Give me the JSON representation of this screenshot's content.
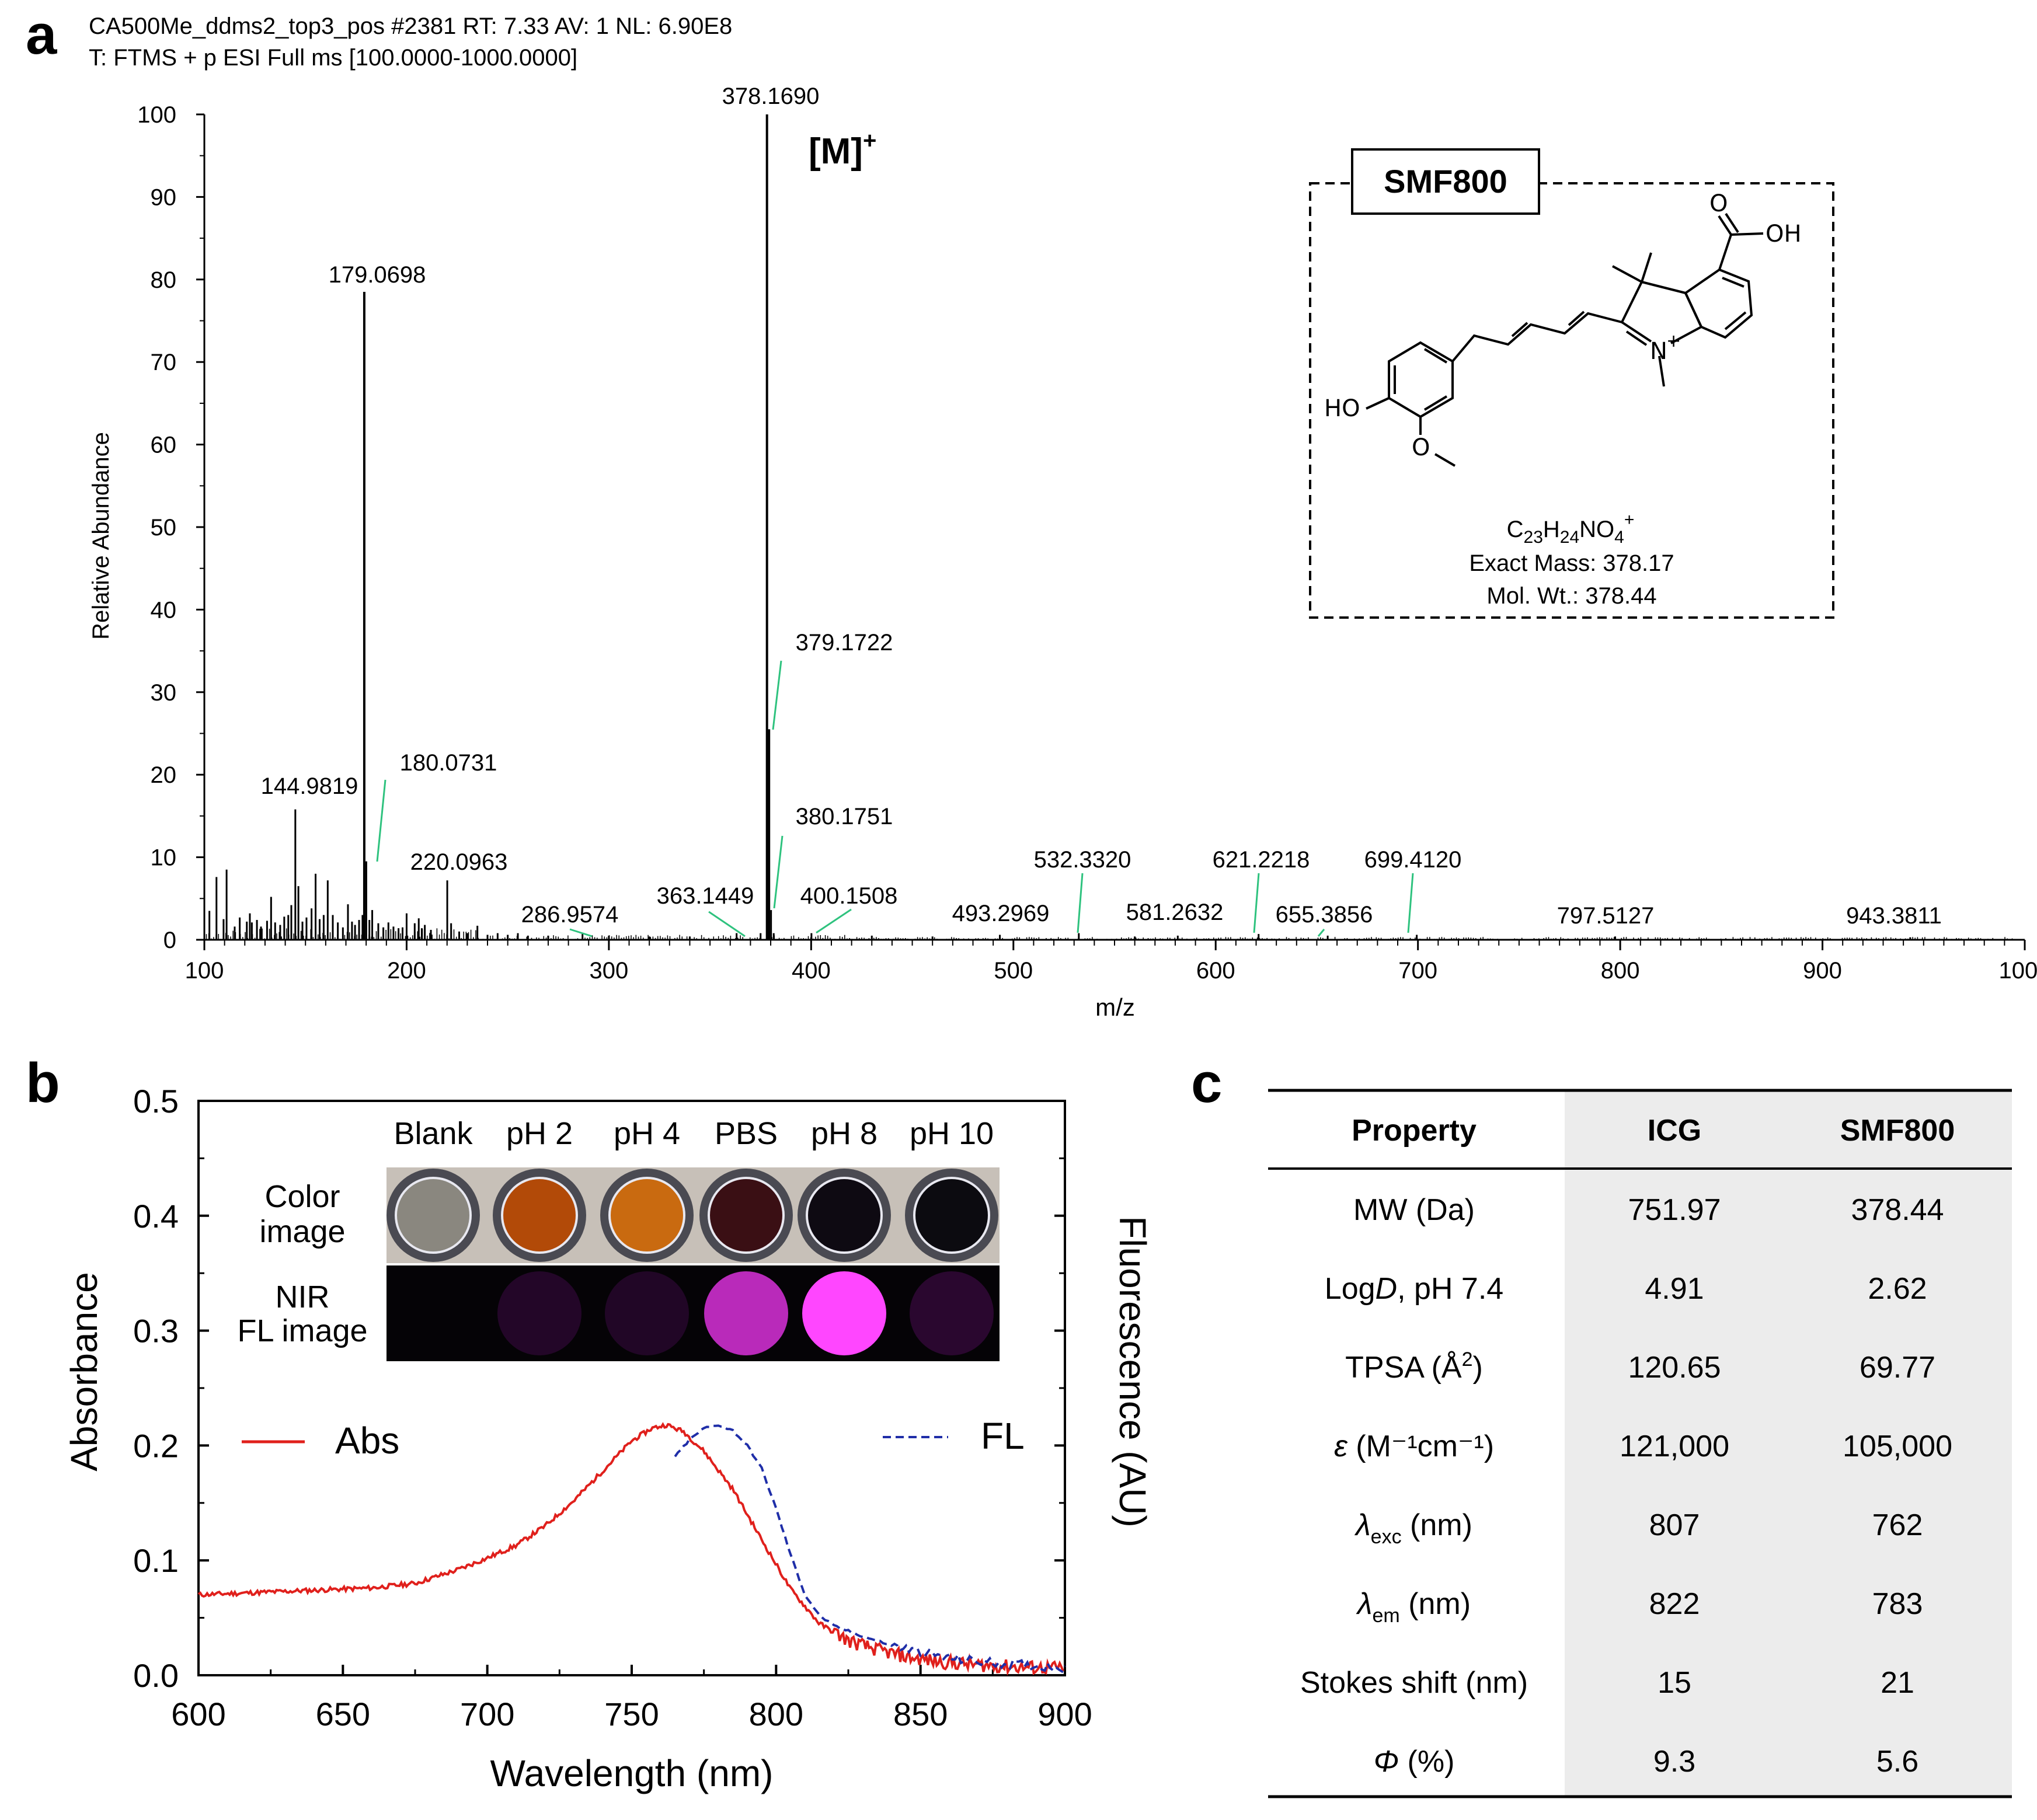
{
  "panel_labels": {
    "a": "a",
    "b": "b",
    "c": "c"
  },
  "panel_a": {
    "header_line1": "CA500Me_ddms2_top3_pos #2381 RT: 7.33 AV: 1 NL: 6.90E8",
    "header_line2": "T: FTMS + p ESI Full ms [100.0000-1000.0000]",
    "ion_label": "[M]",
    "ion_charge": "+",
    "inset": {
      "compound": "SMF800",
      "formula": {
        "C": "C",
        "c_sub": "23",
        "H": "H",
        "h_sub": "24",
        "NO": "NO",
        "o_sub": "4",
        "charge": "+"
      },
      "exact_mass": "Exact Mass: 378.17",
      "mol_wt": "Mol. Wt.: 378.44",
      "atoms": {
        "ho": "HO",
        "oh": "OH",
        "o_carbonyl": "O",
        "o_methoxy": "O",
        "n": "N",
        "n_charge": "+"
      }
    }
  },
  "panel_b": {
    "inset": {
      "columns": [
        "Blank",
        "pH 2",
        "pH 4",
        "PBS",
        "pH 8",
        "pH 10"
      ],
      "row_color": [
        "Color",
        "image"
      ],
      "row_nir": [
        "NIR",
        "FL image"
      ],
      "well_colors": [
        "#8a877f",
        "#b24a08",
        "#c96a10",
        "#3a0f14",
        "#0e0a12",
        "#0c0b10"
      ],
      "nir_intensity": [
        0,
        0.16,
        0.14,
        0.8,
        1.0,
        0.2
      ]
    },
    "legend": {
      "abs": "Abs",
      "fl": "FL"
    },
    "right_axis_label": "Fluorescence (AU)"
  },
  "panel_c": {
    "headers": [
      "Property",
      "ICG",
      "SMF800"
    ],
    "rows": [
      {
        "p_pre": "MW (Da)",
        "p_sym": "",
        "p_sub": "",
        "p_sup": "",
        "p_post": "",
        "icg": "751.97",
        "smf": "378.44"
      },
      {
        "p_pre": "Log",
        "p_sym": "D",
        "p_sub": "",
        "p_sup": "",
        "p_post": ", pH 7.4",
        "icg": "4.91",
        "smf": "2.62"
      },
      {
        "p_pre": "TPSA (Å",
        "p_sym": "",
        "p_sub": "",
        "p_sup": "2",
        "p_post": ")",
        "icg": "120.65",
        "smf": "69.77"
      },
      {
        "p_pre": "",
        "p_sym": "ε",
        "p_sub": "",
        "p_sup": "",
        "p_post": " (M⁻¹cm⁻¹)",
        "icg": "121,000",
        "smf": "105,000"
      },
      {
        "p_pre": "",
        "p_sym": "λ",
        "p_sub": "exc",
        "p_sup": "",
        "p_post": " (nm)",
        "icg": "807",
        "smf": "762"
      },
      {
        "p_pre": "",
        "p_sym": "λ",
        "p_sub": "em",
        "p_sup": "",
        "p_post": " (nm)",
        "icg": "822",
        "smf": "783"
      },
      {
        "p_pre": "Stokes shift (nm)",
        "p_sym": "",
        "p_sub": "",
        "p_sup": "",
        "p_post": "",
        "icg": "15",
        "smf": "21"
      },
      {
        "p_pre": "",
        "p_sym": "Φ",
        "p_sub": "",
        "p_sup": "",
        "p_post": " (%)",
        "icg": "9.3",
        "smf": "5.6"
      }
    ]
  },
  "colors": {
    "abs": "#e0201c",
    "fl": "#1f2ea8",
    "annot": "#2ec27e",
    "table_shade": "#ececec"
  },
  "chart_data": [
    {
      "type": "bar",
      "xlabel": "m/z",
      "ylabel": "Relative Abundance",
      "xlim": [
        100,
        1000
      ],
      "ylim": [
        0,
        100
      ],
      "xticks": [
        100,
        200,
        300,
        400,
        500,
        600,
        700,
        800,
        900,
        1000
      ],
      "yticks": [
        0,
        10,
        20,
        30,
        40,
        50,
        60,
        70,
        80,
        90,
        100
      ],
      "peaks": [
        [
          102.5,
          3.5
        ],
        [
          106,
          7.6
        ],
        [
          109.5,
          2.5
        ],
        [
          111,
          8.5
        ],
        [
          115,
          1.6
        ],
        [
          117.5,
          2.7
        ],
        [
          121,
          2.2
        ],
        [
          122.5,
          3.2
        ],
        [
          123.5,
          2.1
        ],
        [
          126,
          2.4
        ],
        [
          128,
          1.6
        ],
        [
          131,
          2.3
        ],
        [
          133,
          5.2
        ],
        [
          135,
          2.1
        ],
        [
          137.5,
          1.8
        ],
        [
          139.5,
          2.8
        ],
        [
          141.5,
          3.0
        ],
        [
          143,
          4.2
        ],
        [
          144.9819,
          15.8
        ],
        [
          146.5,
          6.5
        ],
        [
          148.5,
          2.2
        ],
        [
          150.5,
          2.7
        ],
        [
          153,
          3.8
        ],
        [
          155,
          8.0
        ],
        [
          157,
          2.5
        ],
        [
          159,
          3.0
        ],
        [
          161,
          7.2
        ],
        [
          163.5,
          3.0
        ],
        [
          166,
          2.1
        ],
        [
          168.5,
          1.5
        ],
        [
          171,
          4.3
        ],
        [
          173,
          2.2
        ],
        [
          174.5,
          1.8
        ],
        [
          176.5,
          2.4
        ],
        [
          178.2,
          3.0
        ],
        [
          179.0698,
          78.5
        ],
        [
          180.0731,
          9.5
        ],
        [
          181.6,
          2.4
        ],
        [
          183,
          3.6
        ],
        [
          186,
          2.0
        ],
        [
          188.5,
          1.5
        ],
        [
          191,
          2.1
        ],
        [
          193.5,
          1.6
        ],
        [
          196,
          1.4
        ],
        [
          198,
          1.5
        ],
        [
          200,
          3.2
        ],
        [
          204,
          2.0
        ],
        [
          206,
          2.6
        ],
        [
          207.5,
          1.4
        ],
        [
          209,
          1.8
        ],
        [
          212,
          1.2
        ],
        [
          220.0963,
          7.2
        ],
        [
          222,
          2.0
        ],
        [
          226,
          1.0
        ],
        [
          230,
          0.8
        ],
        [
          235,
          1.7
        ],
        [
          240,
          0.6
        ],
        [
          245,
          0.8
        ],
        [
          250,
          0.6
        ],
        [
          255,
          0.8
        ],
        [
          260,
          0.5
        ],
        [
          270,
          0.5
        ],
        [
          286.9574,
          0.7
        ],
        [
          300,
          0.5
        ],
        [
          320,
          0.4
        ],
        [
          340,
          0.4
        ],
        [
          363.1449,
          0.8
        ],
        [
          375,
          0.8
        ],
        [
          378.169,
          100
        ],
        [
          379.1722,
          25.5
        ],
        [
          380.1751,
          3.6
        ],
        [
          381.5,
          0.8
        ],
        [
          400.1508,
          0.8
        ],
        [
          430,
          0.5
        ],
        [
          460,
          0.4
        ],
        [
          493.2969,
          0.6
        ],
        [
          532.332,
          0.8
        ],
        [
          560,
          0.4
        ],
        [
          581.2632,
          0.5
        ],
        [
          621.2218,
          0.7
        ],
        [
          655.3856,
          0.5
        ],
        [
          699.412,
          0.6
        ],
        [
          797.5127,
          0.4
        ],
        [
          943.3811,
          0.3
        ]
      ],
      "annotations": [
        {
          "label": "378.1690",
          "x": 378.169,
          "y": 100
        },
        {
          "label": "179.0698",
          "x": 179.0698,
          "y": 78.5
        },
        {
          "label": "379.1722",
          "x": 379.1722,
          "y": 25.5
        },
        {
          "label": "180.0731",
          "x": 180.0731,
          "y": 9.5
        },
        {
          "label": "144.9819",
          "x": 144.9819,
          "y": 15.8
        },
        {
          "label": "220.0963",
          "x": 220.0963,
          "y": 7.2
        },
        {
          "label": "380.1751",
          "x": 380.1751,
          "y": 3.6
        },
        {
          "label": "286.9574",
          "x": 286.9574,
          "y": 0.7
        },
        {
          "label": "363.1449",
          "x": 363.1449,
          "y": 0.8
        },
        {
          "label": "400.1508",
          "x": 400.1508,
          "y": 0.8
        },
        {
          "label": "493.2969",
          "x": 493.2969,
          "y": 0.6
        },
        {
          "label": "532.3320",
          "x": 532.332,
          "y": 0.8
        },
        {
          "label": "581.2632",
          "x": 581.2632,
          "y": 0.5
        },
        {
          "label": "621.2218",
          "x": 621.2218,
          "y": 0.7
        },
        {
          "label": "655.3856",
          "x": 655.3856,
          "y": 0.5
        },
        {
          "label": "699.4120",
          "x": 699.412,
          "y": 0.6
        },
        {
          "label": "797.5127",
          "x": 797.5127,
          "y": 0.4
        },
        {
          "label": "943.3811",
          "x": 943.3811,
          "y": 0.3
        }
      ]
    },
    {
      "type": "line",
      "xlabel": "Wavelength (nm)",
      "ylabel": "Absorbance",
      "xlim": [
        600,
        900
      ],
      "ylim": [
        0,
        0.5
      ],
      "xticks": [
        600,
        650,
        700,
        750,
        800,
        850,
        900
      ],
      "yticks": [
        "0.0",
        "0.1",
        "0.2",
        "0.3",
        "0.4",
        "0.5"
      ],
      "series": [
        {
          "name": "Abs",
          "x": [
            600,
            620,
            640,
            660,
            675,
            690,
            700,
            710,
            720,
            730,
            740,
            750,
            757,
            762,
            768,
            775,
            785,
            795,
            805,
            815,
            825,
            835,
            845,
            855,
            870,
            885,
            900
          ],
          "y": [
            0.07,
            0.072,
            0.074,
            0.076,
            0.08,
            0.092,
            0.102,
            0.113,
            0.13,
            0.152,
            0.178,
            0.204,
            0.215,
            0.218,
            0.212,
            0.195,
            0.162,
            0.118,
            0.075,
            0.045,
            0.03,
            0.022,
            0.016,
            0.012,
            0.009,
            0.007,
            0.006
          ]
        },
        {
          "name": "FL",
          "x": [
            765,
            770,
            775,
            780,
            785,
            790,
            795,
            800,
            805,
            810,
            815,
            820,
            830,
            840,
            850,
            860,
            870,
            880,
            890,
            900
          ],
          "y": [
            0.19,
            0.205,
            0.215,
            0.218,
            0.213,
            0.2,
            0.18,
            0.145,
            0.105,
            0.07,
            0.052,
            0.043,
            0.034,
            0.026,
            0.02,
            0.015,
            0.012,
            0.01,
            0.008,
            0.007
          ]
        }
      ]
    }
  ]
}
